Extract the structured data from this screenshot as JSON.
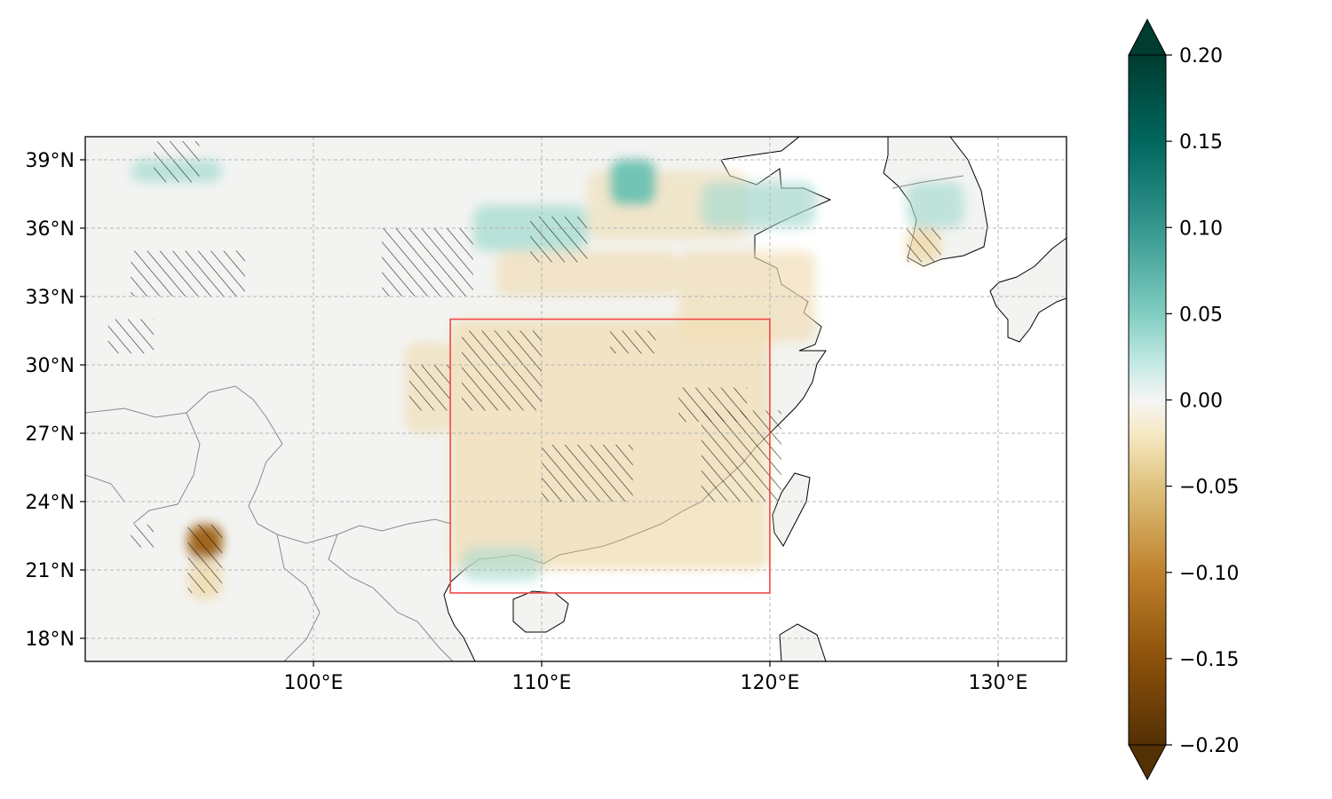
{
  "map": {
    "projection": "PlateCarree",
    "lon_range": [
      90,
      133
    ],
    "lat_range": [
      17,
      40
    ],
    "lon_ticks": [
      {
        "value": 100,
        "label": "100°E"
      },
      {
        "value": 110,
        "label": "110°E"
      },
      {
        "value": 120,
        "label": "120°E"
      },
      {
        "value": 130,
        "label": "130°E"
      }
    ],
    "lat_ticks": [
      {
        "value": 18,
        "label": "18°N"
      },
      {
        "value": 21,
        "label": "21°N"
      },
      {
        "value": 24,
        "label": "24°N"
      },
      {
        "value": 27,
        "label": "27°N"
      },
      {
        "value": 30,
        "label": "30°N"
      },
      {
        "value": 33,
        "label": "33°N"
      },
      {
        "value": 36,
        "label": "36°N"
      },
      {
        "value": 39,
        "label": "39°N"
      }
    ],
    "gridlines": true,
    "highlight_box": {
      "lon": [
        106,
        120
      ],
      "lat": [
        20,
        32
      ],
      "color": "#f04848"
    },
    "colors": {
      "ocean": "#ffffff",
      "land_base": "#f3f4f2",
      "negative_anomaly": "#efdcb0",
      "positive_anomaly": "#a8dcd2",
      "hatch": "#000000",
      "coastline": "#000000",
      "borders": "#8a8a8a"
    },
    "anomaly_regions": [
      {
        "sign": "negative",
        "strength": 0.35,
        "lon": [
          106,
          120
        ],
        "lat": [
          21,
          32
        ]
      },
      {
        "sign": "negative",
        "strength": 0.3,
        "lon": [
          104,
          106
        ],
        "lat": [
          27,
          31
        ]
      },
      {
        "sign": "negative",
        "strength": 0.3,
        "lon": [
          116,
          122
        ],
        "lat": [
          31,
          35
        ]
      },
      {
        "sign": "negative",
        "strength": 0.3,
        "lon": [
          108,
          116
        ],
        "lat": [
          33,
          35
        ]
      },
      {
        "sign": "negative",
        "strength": 0.25,
        "lon": [
          112,
          119
        ],
        "lat": [
          35.5,
          38.5
        ]
      },
      {
        "sign": "negative",
        "strength": 0.9,
        "lon": [
          94.5,
          96
        ],
        "lat": [
          21.5,
          23
        ]
      },
      {
        "sign": "negative",
        "strength": 0.5,
        "lon": [
          94.5,
          96
        ],
        "lat": [
          19.7,
          21.5
        ]
      },
      {
        "sign": "negative",
        "strength": 0.55,
        "lon": [
          126,
          127.5
        ],
        "lat": [
          34.5,
          36
        ]
      },
      {
        "sign": "positive",
        "strength": 0.45,
        "lon": [
          107,
          112
        ],
        "lat": [
          35,
          37
        ]
      },
      {
        "sign": "positive",
        "strength": 0.6,
        "lon": [
          113,
          115
        ],
        "lat": [
          37,
          39
        ]
      },
      {
        "sign": "positive",
        "strength": 0.35,
        "lon": [
          117,
          122
        ],
        "lat": [
          36,
          38
        ]
      },
      {
        "sign": "positive",
        "strength": 0.4,
        "lon": [
          92,
          96
        ],
        "lat": [
          38,
          39
        ]
      },
      {
        "sign": "positive",
        "strength": 0.35,
        "lon": [
          126,
          128.5
        ],
        "lat": [
          36,
          38
        ]
      },
      {
        "sign": "positive",
        "strength": 0.25,
        "lon": [
          106.5,
          110
        ],
        "lat": [
          20.5,
          22
        ]
      }
    ],
    "hatched_regions": [
      {
        "lon": [
          106.5,
          110
        ],
        "lat": [
          28,
          31.5
        ]
      },
      {
        "lon": [
          104.2,
          106
        ],
        "lat": [
          28,
          30
        ]
      },
      {
        "lon": [
          113,
          115
        ],
        "lat": [
          30.5,
          31.5
        ]
      },
      {
        "lon": [
          116,
          119
        ],
        "lat": [
          27.5,
          29
        ]
      },
      {
        "lon": [
          117,
          120.5
        ],
        "lat": [
          24,
          28
        ]
      },
      {
        "lon": [
          110,
          114
        ],
        "lat": [
          24,
          26.5
        ]
      },
      {
        "lon": [
          92,
          97
        ],
        "lat": [
          33,
          35
        ]
      },
      {
        "lon": [
          103,
          107
        ],
        "lat": [
          33,
          36
        ]
      },
      {
        "lon": [
          109.5,
          112
        ],
        "lat": [
          34.5,
          36.5
        ]
      },
      {
        "lon": [
          94.5,
          96
        ],
        "lat": [
          20,
          23
        ]
      },
      {
        "lon": [
          92,
          93
        ],
        "lat": [
          22,
          23
        ]
      },
      {
        "lon": [
          126,
          127.5
        ],
        "lat": [
          34.5,
          36
        ]
      },
      {
        "lon": [
          93,
          95
        ],
        "lat": [
          38,
          39.8
        ]
      },
      {
        "lon": [
          91,
          93
        ],
        "lat": [
          30.5,
          32
        ]
      }
    ]
  },
  "colorbar": {
    "cmap": "BrBG",
    "vmin": -0.2,
    "vmax": 0.2,
    "extend": "both",
    "ticks": [
      {
        "value": 0.2,
        "label": "0.20"
      },
      {
        "value": 0.15,
        "label": "0.15"
      },
      {
        "value": 0.1,
        "label": "0.10"
      },
      {
        "value": 0.05,
        "label": "0.05"
      },
      {
        "value": 0.0,
        "label": "0.00"
      },
      {
        "value": -0.05,
        "label": "−0.05"
      },
      {
        "value": -0.1,
        "label": "−0.10"
      },
      {
        "value": -0.15,
        "label": "−0.15"
      },
      {
        "value": -0.2,
        "label": "−0.20"
      }
    ],
    "stops": [
      {
        "value": -0.2,
        "color": "#543005"
      },
      {
        "value": -0.15,
        "color": "#8c510a"
      },
      {
        "value": -0.1,
        "color": "#bf812d"
      },
      {
        "value": -0.05,
        "color": "#dfc27d"
      },
      {
        "value": -0.02,
        "color": "#f6e8c3"
      },
      {
        "value": 0.0,
        "color": "#f5f5f5"
      },
      {
        "value": 0.02,
        "color": "#c7eae5"
      },
      {
        "value": 0.05,
        "color": "#80cdc1"
      },
      {
        "value": 0.1,
        "color": "#35978f"
      },
      {
        "value": 0.15,
        "color": "#01665e"
      },
      {
        "value": 0.2,
        "color": "#003c30"
      }
    ]
  }
}
